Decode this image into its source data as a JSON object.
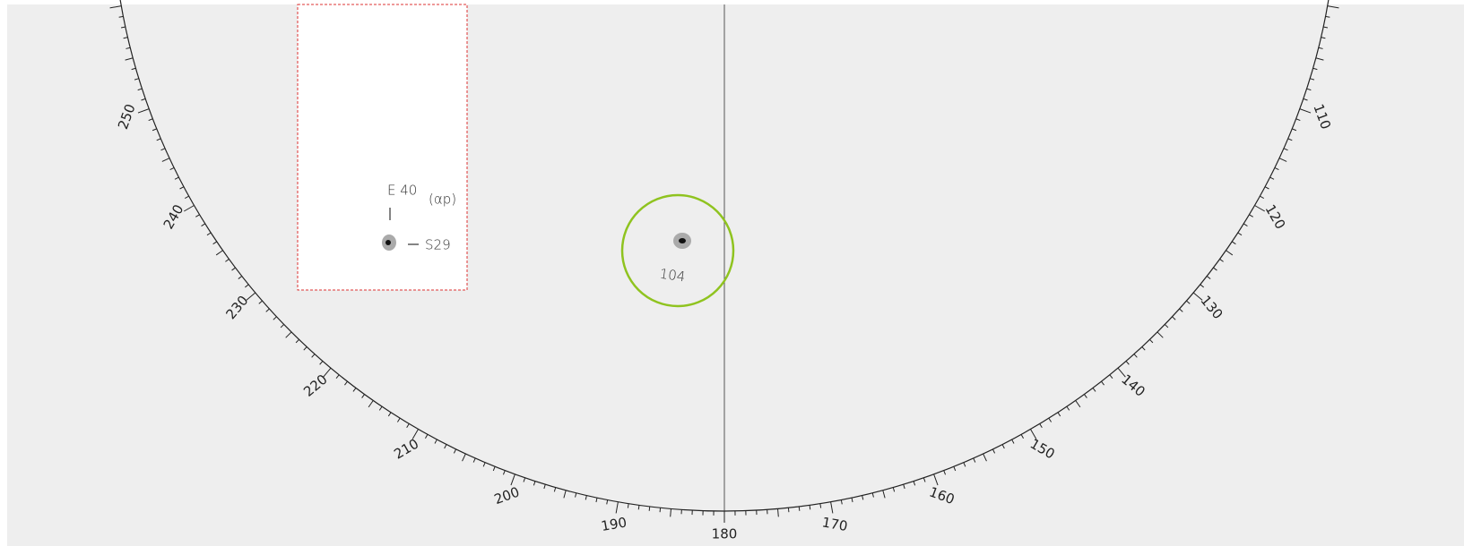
{
  "disk": {
    "degree_labels": [
      250,
      240,
      230,
      220,
      210,
      200,
      190,
      180,
      170,
      160,
      150,
      140,
      130,
      120,
      110
    ]
  },
  "inset": {
    "label_e": "E 40",
    "label_class": "(αp)",
    "label_s": "S29"
  },
  "group": {
    "number": "104"
  }
}
